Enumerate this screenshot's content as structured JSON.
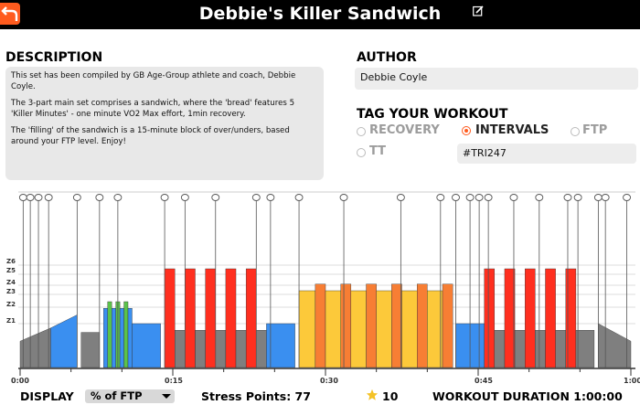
{
  "header": {
    "title": "Debbie's Killer Sandwich"
  },
  "description": {
    "heading": "DESCRIPTION",
    "paragraphs": [
      "This set has been compiled by GB Age-Group athlete and coach, Debbie Coyle.",
      "The 3-part main set comprises a sandwich, where the 'bread' features 5 'Killer Minutes' - one minute VO2 Max effort, 1min recovery.",
      "The 'filling' of the sandwich is a 15-minute block of over/unders, based around your FTP level. Enjoy!"
    ]
  },
  "author": {
    "heading": "AUTHOR",
    "name": "Debbie Coyle"
  },
  "tags": {
    "heading": "TAG YOUR WORKOUT",
    "options": [
      "RECOVERY",
      "INTERVALS",
      "FTP",
      "TT"
    ],
    "selected": "INTERVALS",
    "hashtag": "#TRI247"
  },
  "chart": {
    "zone_labels": [
      "Z6",
      "Z5",
      "Z4",
      "Z3",
      "Z2",
      "Z1"
    ],
    "time_labels": [
      "0:00",
      "0:15",
      "0:30",
      "0:45",
      "1:00"
    ],
    "zone_colors": {
      "Z1": "#7f7f7f",
      "Z2": "#3a8ff0",
      "Z3": "#5bc24a",
      "Z4": "#fcc93a",
      "Z5": "#f77e34",
      "Z6": "#ff2f1f"
    }
  },
  "chart_data": {
    "type": "bar",
    "xlabel": "",
    "ylabel": "",
    "x_unit": "minutes",
    "x_range": [
      0,
      60
    ],
    "x_ticks": [
      "0:00",
      "0:15",
      "0:30",
      "0:45",
      "1:00"
    ],
    "y_ticks": [
      "Z1",
      "Z2",
      "Z3",
      "Z4",
      "Z5",
      "Z6"
    ],
    "segments": [
      {
        "start": 0.0,
        "end": 3.0,
        "zone": "Z1",
        "from": 1.2,
        "to": 1.8
      },
      {
        "start": 3.0,
        "end": 5.6,
        "zone": "Z2",
        "from": 1.8,
        "to": 2.4
      },
      {
        "start": 6.0,
        "end": 7.8,
        "zone": "Z1",
        "level": 1.6
      },
      {
        "start": 8.2,
        "end": 8.6,
        "zone": "Z2",
        "level": 2.7
      },
      {
        "start": 8.6,
        "end": 9.0,
        "zone": "Z3",
        "level": 3.0
      },
      {
        "start": 9.0,
        "end": 9.4,
        "zone": "Z2",
        "level": 2.7
      },
      {
        "start": 9.4,
        "end": 9.8,
        "zone": "Z3",
        "level": 3.0
      },
      {
        "start": 9.8,
        "end": 10.2,
        "zone": "Z2",
        "level": 2.7
      },
      {
        "start": 10.2,
        "end": 10.6,
        "zone": "Z3",
        "level": 3.0
      },
      {
        "start": 10.6,
        "end": 11.0,
        "zone": "Z2",
        "level": 2.7
      },
      {
        "start": 11.0,
        "end": 13.8,
        "zone": "Z2",
        "level": 2.0
      },
      {
        "start": 14.2,
        "end": 15.2,
        "zone": "Z6",
        "level": 4.5
      },
      {
        "start": 15.2,
        "end": 16.2,
        "zone": "Z1",
        "level": 1.7
      },
      {
        "start": 16.2,
        "end": 17.2,
        "zone": "Z6",
        "level": 4.5
      },
      {
        "start": 17.2,
        "end": 18.2,
        "zone": "Z1",
        "level": 1.7
      },
      {
        "start": 18.2,
        "end": 19.2,
        "zone": "Z6",
        "level": 4.5
      },
      {
        "start": 19.2,
        "end": 20.2,
        "zone": "Z1",
        "level": 1.7
      },
      {
        "start": 20.2,
        "end": 21.2,
        "zone": "Z6",
        "level": 4.5
      },
      {
        "start": 21.2,
        "end": 22.2,
        "zone": "Z1",
        "level": 1.7
      },
      {
        "start": 22.2,
        "end": 23.2,
        "zone": "Z6",
        "level": 4.5
      },
      {
        "start": 23.2,
        "end": 24.2,
        "zone": "Z1",
        "level": 1.7
      },
      {
        "start": 24.2,
        "end": 27.0,
        "zone": "Z2",
        "level": 2.0
      },
      {
        "start": 27.4,
        "end": 29.0,
        "zone": "Z4",
        "level": 3.5
      },
      {
        "start": 29.0,
        "end": 30.0,
        "zone": "Z5",
        "level": 3.8
      },
      {
        "start": 30.0,
        "end": 31.5,
        "zone": "Z4",
        "level": 3.5
      },
      {
        "start": 31.5,
        "end": 32.5,
        "zone": "Z5",
        "level": 3.8
      },
      {
        "start": 32.5,
        "end": 34.0,
        "zone": "Z4",
        "level": 3.5
      },
      {
        "start": 34.0,
        "end": 35.0,
        "zone": "Z5",
        "level": 3.8
      },
      {
        "start": 35.0,
        "end": 36.5,
        "zone": "Z4",
        "level": 3.5
      },
      {
        "start": 36.5,
        "end": 37.5,
        "zone": "Z5",
        "level": 3.8
      },
      {
        "start": 37.5,
        "end": 39.0,
        "zone": "Z4",
        "level": 3.5
      },
      {
        "start": 39.0,
        "end": 40.0,
        "zone": "Z5",
        "level": 3.8
      },
      {
        "start": 40.0,
        "end": 41.5,
        "zone": "Z4",
        "level": 3.5
      },
      {
        "start": 41.5,
        "end": 42.5,
        "zone": "Z5",
        "level": 3.8
      },
      {
        "start": 42.8,
        "end": 45.6,
        "zone": "Z2",
        "level": 2.0
      },
      {
        "start": 45.6,
        "end": 46.6,
        "zone": "Z6",
        "level": 4.5
      },
      {
        "start": 46.6,
        "end": 47.6,
        "zone": "Z1",
        "level": 1.7
      },
      {
        "start": 47.6,
        "end": 48.6,
        "zone": "Z6",
        "level": 4.5
      },
      {
        "start": 48.6,
        "end": 49.6,
        "zone": "Z1",
        "level": 1.7
      },
      {
        "start": 49.6,
        "end": 50.6,
        "zone": "Z6",
        "level": 4.5
      },
      {
        "start": 50.6,
        "end": 51.6,
        "zone": "Z1",
        "level": 1.7
      },
      {
        "start": 51.6,
        "end": 52.6,
        "zone": "Z6",
        "level": 4.5
      },
      {
        "start": 52.6,
        "end": 53.6,
        "zone": "Z1",
        "level": 1.7
      },
      {
        "start": 53.6,
        "end": 54.6,
        "zone": "Z6",
        "level": 4.5
      },
      {
        "start": 54.6,
        "end": 56.4,
        "zone": "Z1",
        "level": 1.7
      },
      {
        "start": 56.8,
        "end": 60.0,
        "zone": "Z1",
        "from": 2.0,
        "to": 1.2
      }
    ],
    "markers": [
      0.3,
      1.0,
      1.8,
      2.8,
      5.6,
      7.8,
      9.6,
      14.2,
      16.2,
      19.2,
      23.2,
      24.6,
      27.4,
      31.8,
      37.4,
      41.3,
      42.8,
      44.2,
      45.1,
      46.0,
      48.5,
      51.0,
      53.8,
      54.8,
      56.8,
      57.5,
      59.6
    ]
  },
  "footer": {
    "display_label": "DISPLAY",
    "display_value": "% of FTP",
    "stress_points": "Stress Points: 77",
    "rating": "10",
    "duration": "WORKOUT DURATION 1:00:00"
  }
}
